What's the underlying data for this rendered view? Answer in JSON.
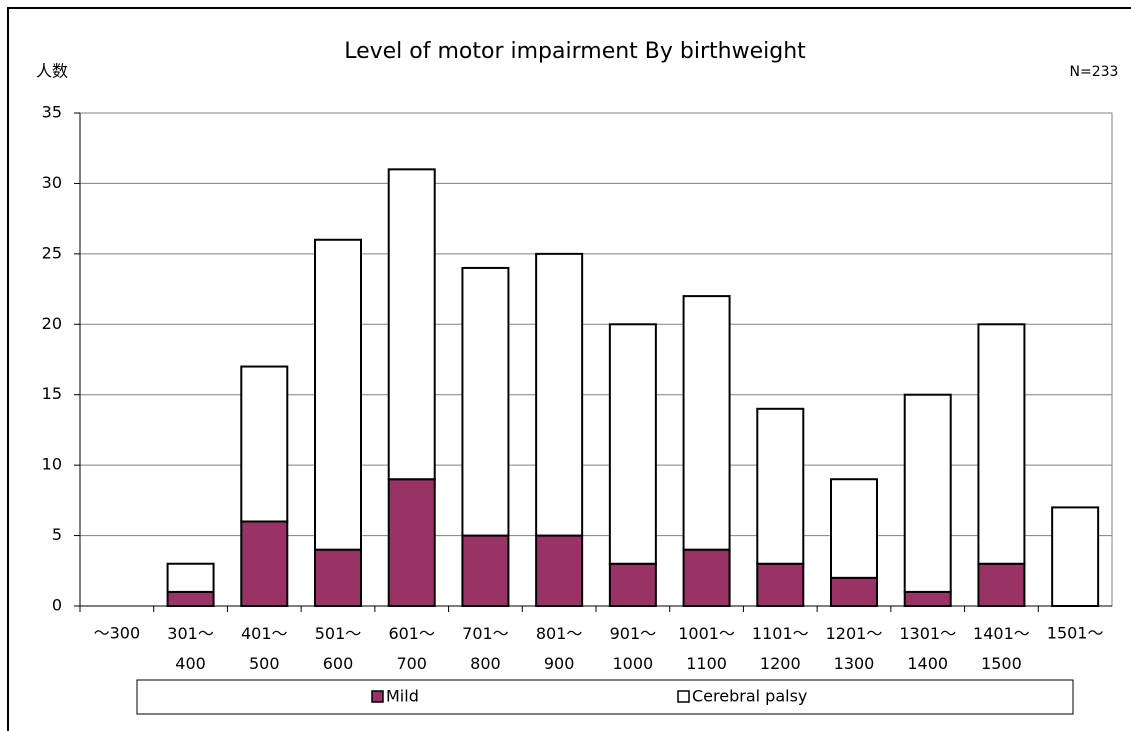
{
  "chart_data": {
    "type": "stacked_bar",
    "title": "Level of motor impairment By birthweight",
    "y_label": "人数",
    "annotation": "N=233",
    "categories": [
      "～300",
      "301～\n400",
      "401～\n500",
      "501～\n600",
      "601～\n700",
      "701～\n800",
      "801～\n900",
      "901～\n1000",
      "1001～\n1100",
      "1101～\n1200",
      "1201～\n1300",
      "1301～\n1400",
      "1401～\n1500",
      "1501～"
    ],
    "series": [
      {
        "name": "Mild",
        "color": "#993366",
        "values": [
          0,
          1,
          6,
          4,
          9,
          5,
          5,
          3,
          4,
          3,
          2,
          1,
          3,
          0
        ]
      },
      {
        "name": "Cerebral palsy",
        "color": "#ffffff",
        "values": [
          0,
          2,
          11,
          22,
          22,
          19,
          20,
          17,
          18,
          11,
          7,
          14,
          17,
          7
        ]
      }
    ],
    "ylim": [
      0,
      35
    ],
    "yticks": [
      0,
      5,
      10,
      15,
      20,
      25,
      30,
      35
    ],
    "grid": true,
    "legend": "bottom"
  }
}
